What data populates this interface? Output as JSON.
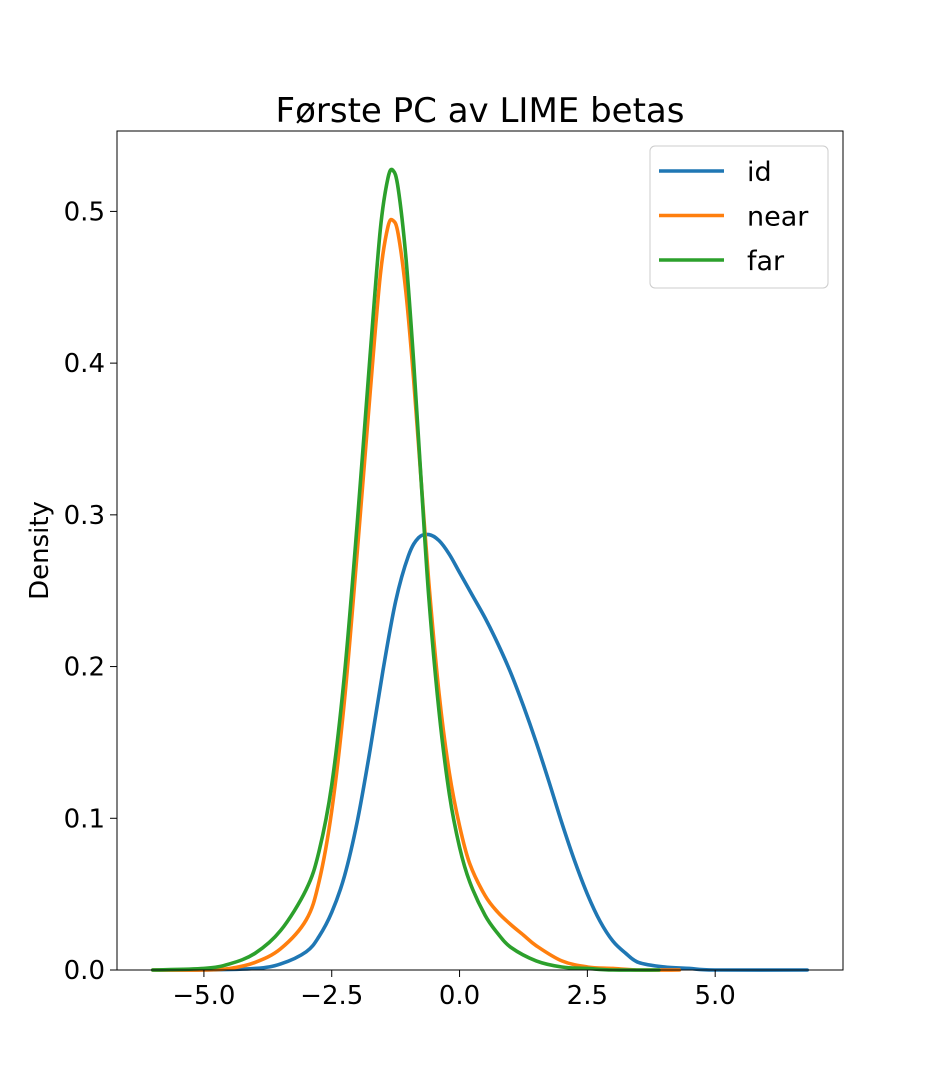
{
  "chart_data": {
    "type": "line",
    "title": "Første PC av LIME betas",
    "xlabel": "",
    "ylabel": "Density",
    "xlim": [
      -6.7,
      7.5
    ],
    "ylim": [
      0,
      0.553
    ],
    "xticks": [
      -5.0,
      -2.5,
      0.0,
      2.5,
      5.0
    ],
    "xtick_labels": [
      "−5.0",
      "−2.5",
      "0.0",
      "2.5",
      "5.0"
    ],
    "yticks": [
      0.0,
      0.1,
      0.2,
      0.3,
      0.4,
      0.5
    ],
    "ytick_labels": [
      "0.0",
      "0.1",
      "0.2",
      "0.3",
      "0.4",
      "0.5"
    ],
    "grid": false,
    "legend_position": "top-right",
    "series": [
      {
        "name": "id",
        "color": "#1f77b4",
        "points": [
          [
            -6.0,
            0.0
          ],
          [
            -5.0,
            0.0
          ],
          [
            -4.0,
            0.001
          ],
          [
            -3.5,
            0.004
          ],
          [
            -3.0,
            0.012
          ],
          [
            -2.75,
            0.022
          ],
          [
            -2.5,
            0.038
          ],
          [
            -2.25,
            0.062
          ],
          [
            -2.0,
            0.098
          ],
          [
            -1.75,
            0.145
          ],
          [
            -1.5,
            0.197
          ],
          [
            -1.25,
            0.243
          ],
          [
            -1.0,
            0.273
          ],
          [
            -0.8,
            0.285
          ],
          [
            -0.6,
            0.287
          ],
          [
            -0.4,
            0.283
          ],
          [
            -0.2,
            0.274
          ],
          [
            0.0,
            0.262
          ],
          [
            0.25,
            0.247
          ],
          [
            0.5,
            0.232
          ],
          [
            0.75,
            0.215
          ],
          [
            1.0,
            0.196
          ],
          [
            1.25,
            0.174
          ],
          [
            1.5,
            0.15
          ],
          [
            1.75,
            0.124
          ],
          [
            2.0,
            0.097
          ],
          [
            2.25,
            0.072
          ],
          [
            2.5,
            0.05
          ],
          [
            2.75,
            0.032
          ],
          [
            3.0,
            0.019
          ],
          [
            3.25,
            0.011
          ],
          [
            3.5,
            0.005
          ],
          [
            4.0,
            0.002
          ],
          [
            4.5,
            0.001
          ],
          [
            5.0,
            0.0
          ],
          [
            6.8,
            0.0
          ]
        ]
      },
      {
        "name": "near",
        "color": "#ff7f0e",
        "points": [
          [
            -6.0,
            0.0
          ],
          [
            -5.0,
            0.0
          ],
          [
            -4.5,
            0.001
          ],
          [
            -4.0,
            0.005
          ],
          [
            -3.5,
            0.014
          ],
          [
            -3.0,
            0.033
          ],
          [
            -2.75,
            0.058
          ],
          [
            -2.5,
            0.105
          ],
          [
            -2.25,
            0.178
          ],
          [
            -2.0,
            0.276
          ],
          [
            -1.75,
            0.38
          ],
          [
            -1.55,
            0.458
          ],
          [
            -1.4,
            0.49
          ],
          [
            -1.3,
            0.494
          ],
          [
            -1.2,
            0.485
          ],
          [
            -1.05,
            0.447
          ],
          [
            -0.9,
            0.39
          ],
          [
            -0.75,
            0.322
          ],
          [
            -0.6,
            0.255
          ],
          [
            -0.4,
            0.182
          ],
          [
            -0.2,
            0.13
          ],
          [
            0.0,
            0.095
          ],
          [
            0.2,
            0.07
          ],
          [
            0.5,
            0.049
          ],
          [
            0.75,
            0.038
          ],
          [
            1.0,
            0.03
          ],
          [
            1.25,
            0.023
          ],
          [
            1.5,
            0.016
          ],
          [
            2.0,
            0.006
          ],
          [
            2.5,
            0.002
          ],
          [
            3.0,
            0.001
          ],
          [
            3.5,
            0.0
          ],
          [
            4.3,
            0.0
          ]
        ]
      },
      {
        "name": "far",
        "color": "#2ca02c",
        "points": [
          [
            -6.0,
            0.0
          ],
          [
            -5.0,
            0.001
          ],
          [
            -4.5,
            0.004
          ],
          [
            -4.0,
            0.011
          ],
          [
            -3.5,
            0.026
          ],
          [
            -3.0,
            0.053
          ],
          [
            -2.75,
            0.078
          ],
          [
            -2.5,
            0.122
          ],
          [
            -2.25,
            0.195
          ],
          [
            -2.0,
            0.295
          ],
          [
            -1.75,
            0.405
          ],
          [
            -1.55,
            0.488
          ],
          [
            -1.4,
            0.522
          ],
          [
            -1.3,
            0.527
          ],
          [
            -1.2,
            0.515
          ],
          [
            -1.05,
            0.47
          ],
          [
            -0.9,
            0.402
          ],
          [
            -0.75,
            0.322
          ],
          [
            -0.6,
            0.245
          ],
          [
            -0.4,
            0.17
          ],
          [
            -0.2,
            0.116
          ],
          [
            0.0,
            0.081
          ],
          [
            0.2,
            0.058
          ],
          [
            0.5,
            0.036
          ],
          [
            0.75,
            0.024
          ],
          [
            1.0,
            0.015
          ],
          [
            1.5,
            0.006
          ],
          [
            2.0,
            0.002
          ],
          [
            2.5,
            0.001
          ],
          [
            3.0,
            0.0
          ],
          [
            3.9,
            0.0
          ]
        ]
      }
    ]
  }
}
